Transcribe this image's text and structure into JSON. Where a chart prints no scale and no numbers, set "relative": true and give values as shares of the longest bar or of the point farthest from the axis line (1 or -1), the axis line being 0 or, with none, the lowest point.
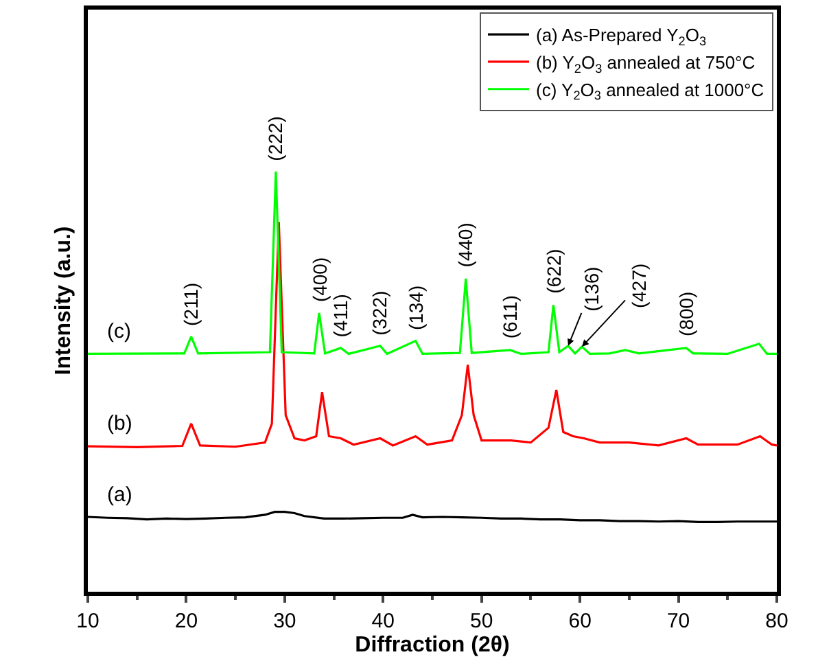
{
  "chart_data": {
    "type": "line",
    "relative": true,
    "xlabel": "Diffraction (2θ)",
    "ylabel": "Intensity (a.u.)",
    "xlim": [
      10,
      80
    ],
    "xticks": [
      10,
      20,
      30,
      40,
      50,
      60,
      70,
      80
    ],
    "tick_labels": "x",
    "legend": "top right",
    "marker": "none",
    "line_style": "solid",
    "series": [
      {
        "name": "(a) As-Prepared Y$_{2}$O$_{3}$",
        "color": "#000000",
        "x": [
          10,
          12,
          14,
          16,
          18,
          20,
          22,
          24,
          26,
          28,
          29,
          30,
          31,
          32,
          34,
          36,
          38,
          40,
          42,
          43,
          44,
          46,
          48,
          50,
          52,
          54,
          56,
          58,
          60,
          62,
          64,
          66,
          68,
          70,
          72,
          74,
          76,
          78,
          80
        ],
        "values": [
          0.178,
          0.176,
          0.175,
          0.172,
          0.174,
          0.173,
          0.174,
          0.176,
          0.177,
          0.183,
          0.19,
          0.19,
          0.187,
          0.18,
          0.174,
          0.174,
          0.175,
          0.176,
          0.176,
          0.183,
          0.177,
          0.178,
          0.177,
          0.176,
          0.174,
          0.174,
          0.172,
          0.172,
          0.17,
          0.17,
          0.168,
          0.168,
          0.167,
          0.168,
          0.166,
          0.166,
          0.167,
          0.167,
          0.167
        ]
      },
      {
        "name": "(b) Y$_{2}$O$_{3}$ annealed at 750°C",
        "color": "#ff0000",
        "x": [
          10,
          15,
          19.6,
          20.5,
          21.4,
          25,
          28,
          28.7,
          29.4,
          30.1,
          31,
          32,
          33.2,
          33.8,
          34.5,
          35.7,
          37,
          39.7,
          41,
          43.3,
          44.5,
          47,
          48,
          48.6,
          49.2,
          50,
          53,
          55,
          56.8,
          57.6,
          58.3,
          59.3,
          60.4,
          62,
          65,
          68,
          70.8,
          72,
          76,
          78.3,
          79.5,
          80
        ],
        "values": [
          0.346,
          0.344,
          0.347,
          0.4,
          0.348,
          0.345,
          0.355,
          0.4,
          0.88,
          0.42,
          0.365,
          0.36,
          0.37,
          0.475,
          0.37,
          0.365,
          0.35,
          0.365,
          0.348,
          0.37,
          0.35,
          0.36,
          0.42,
          0.54,
          0.42,
          0.36,
          0.36,
          0.355,
          0.39,
          0.48,
          0.38,
          0.37,
          0.365,
          0.355,
          0.355,
          0.348,
          0.365,
          0.35,
          0.35,
          0.37,
          0.35,
          0.348
        ]
      },
      {
        "name": "(c) Y$_{2}$O$_{3}$ annealed at 1000°C",
        "color": "#00ff00",
        "x": [
          10,
          19.8,
          20.5,
          21.2,
          28.5,
          29.1,
          29.7,
          33,
          33.5,
          34.1,
          35.7,
          36.5,
          39.7,
          40.4,
          43.3,
          44,
          47.8,
          48.4,
          49,
          52.9,
          54,
          56.8,
          57.3,
          57.9,
          58.8,
          59.5,
          60.2,
          61,
          63,
          64.6,
          66,
          70.8,
          71.5,
          75,
          78.2,
          79,
          80
        ],
        "values": [
          0.566,
          0.567,
          0.607,
          0.567,
          0.57,
          1.0,
          0.57,
          0.567,
          0.663,
          0.567,
          0.58,
          0.566,
          0.585,
          0.566,
          0.597,
          0.566,
          0.568,
          0.745,
          0.568,
          0.575,
          0.566,
          0.57,
          0.682,
          0.57,
          0.585,
          0.567,
          0.583,
          0.566,
          0.567,
          0.575,
          0.567,
          0.58,
          0.567,
          0.566,
          0.59,
          0.566,
          0.566
        ]
      }
    ],
    "annotations": [
      {
        "text": "(211)",
        "x": 20.5,
        "y": 0.607
      },
      {
        "text": "(222)",
        "x": 29.1,
        "y": 1.0
      },
      {
        "text": "(400)",
        "x": 33.5,
        "y": 0.663
      },
      {
        "text": "(411)",
        "x": 35.7,
        "y": 0.58
      },
      {
        "text": "(322)",
        "x": 39.7,
        "y": 0.585
      },
      {
        "text": "(134)",
        "x": 43.3,
        "y": 0.597
      },
      {
        "text": "(440)",
        "x": 48.4,
        "y": 0.745
      },
      {
        "text": "(611)",
        "x": 52.9,
        "y": 0.575
      },
      {
        "text": "(622)",
        "x": 57.3,
        "y": 0.682
      },
      {
        "text": "(136)",
        "x": 58.8,
        "y": 0.585
      },
      {
        "text": "(427)",
        "x": 60.2,
        "y": 0.583
      },
      {
        "text": "(800)",
        "x": 70.8,
        "y": 0.58
      },
      "(c)",
      "(b)",
      "(a)"
    ]
  }
}
